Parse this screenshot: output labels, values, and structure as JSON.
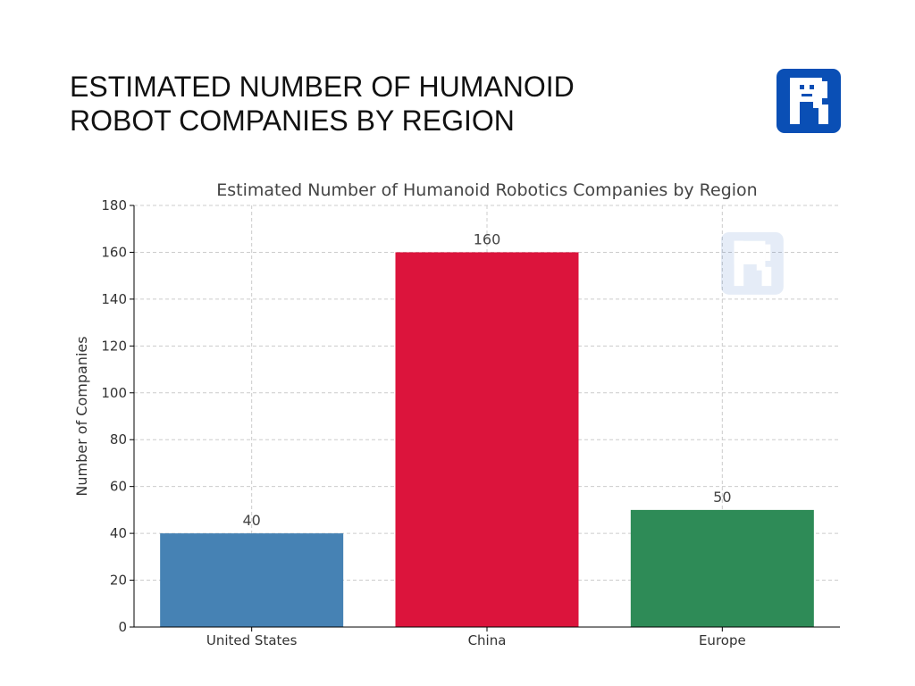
{
  "header": {
    "title_line1": "ESTIMATED NUMBER OF HUMANOID",
    "title_line2": "ROBOT COMPANIES BY REGION",
    "logo_icon": "robot-r-logo-icon",
    "logo_color": "#0a4fb5"
  },
  "chart_data": {
    "type": "bar",
    "title": "Estimated Number of Humanoid Robotics Companies by Region",
    "xlabel": "",
    "ylabel": "Number of Companies",
    "categories": [
      "United States",
      "China",
      "Europe"
    ],
    "values": [
      40,
      160,
      50
    ],
    "colors": [
      "#4682b4",
      "#dc143c",
      "#2e8b57"
    ],
    "ylim": [
      0,
      180
    ],
    "yticks": [
      0,
      20,
      40,
      60,
      80,
      100,
      120,
      140,
      160,
      180
    ],
    "grid": true,
    "watermark_icon": "robot-r-logo-icon"
  }
}
